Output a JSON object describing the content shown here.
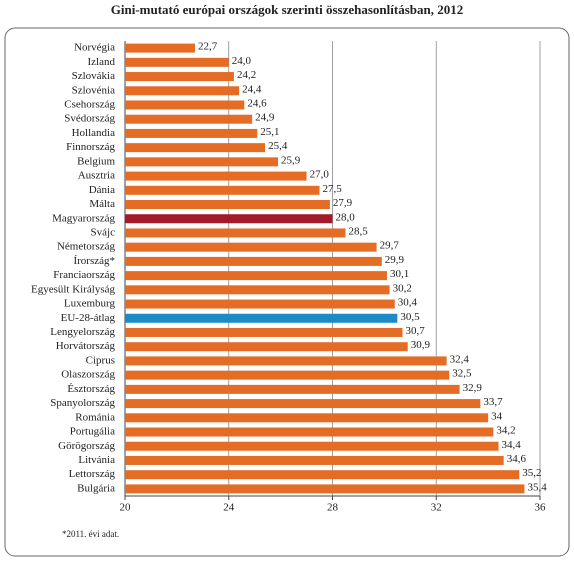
{
  "chart_data": {
    "type": "hbar",
    "title": "Gini-mutató európai országok szerinti összehasonlításban, 2012",
    "categories": [
      "Norvégia",
      "Izland",
      "Szlovákia",
      "Szlovénia",
      "Csehország",
      "Svédország",
      "Hollandia",
      "Finnország",
      "Belgium",
      "Ausztria",
      "Dánia",
      "Málta",
      "Magyarország",
      "Svájc",
      "Németország",
      "Írország*",
      "Franciaország",
      "Egyesült Királyság",
      "Luxemburg",
      "EU-28-átlag",
      "Lengyelország",
      "Horvátország",
      "Ciprus",
      "Olaszország",
      "Észtország",
      "Spanyolország",
      "Románia",
      "Portugália",
      "Görögország",
      "Litvánia",
      "Lettország",
      "Bulgária"
    ],
    "values": [
      22.7,
      24.0,
      24.2,
      24.4,
      24.6,
      24.9,
      25.1,
      25.4,
      25.9,
      27.0,
      27.5,
      27.9,
      28.0,
      28.5,
      29.7,
      29.9,
      30.1,
      30.2,
      30.4,
      30.5,
      30.7,
      30.9,
      32.4,
      32.5,
      32.9,
      33.7,
      34,
      34.2,
      34.4,
      34.6,
      35.2,
      35.4
    ],
    "value_labels": [
      "22,7",
      "24,0",
      "24,2",
      "24,4",
      "24,6",
      "24,9",
      "25,1",
      "25,4",
      "25,9",
      "27,0",
      "27,5",
      "27,9",
      "28,0",
      "28,5",
      "29,7",
      "29,9",
      "30,1",
      "30,2",
      "30,4",
      "30,5",
      "30,7",
      "30,9",
      "32,4",
      "32,5",
      "32,9",
      "33,7",
      "34",
      "34,2",
      "34,4",
      "34,6",
      "35,2",
      "35,4"
    ],
    "colors": [
      "#e46c25",
      "#e46c25",
      "#e46c25",
      "#e46c25",
      "#e46c25",
      "#e46c25",
      "#e46c25",
      "#e46c25",
      "#e46c25",
      "#e46c25",
      "#e46c25",
      "#e46c25",
      "#a31a2c",
      "#e46c25",
      "#e46c25",
      "#e46c25",
      "#e46c25",
      "#e46c25",
      "#e46c25",
      "#1d8bc8",
      "#e46c25",
      "#e46c25",
      "#e46c25",
      "#e46c25",
      "#e46c25",
      "#e46c25",
      "#e46c25",
      "#e46c25",
      "#e46c25",
      "#e46c25",
      "#e46c25",
      "#e46c25"
    ],
    "xlim": [
      20,
      36
    ],
    "xticks": [
      20,
      24,
      28,
      32,
      36
    ],
    "grid": true,
    "footnote": "*2011. évi adat."
  }
}
